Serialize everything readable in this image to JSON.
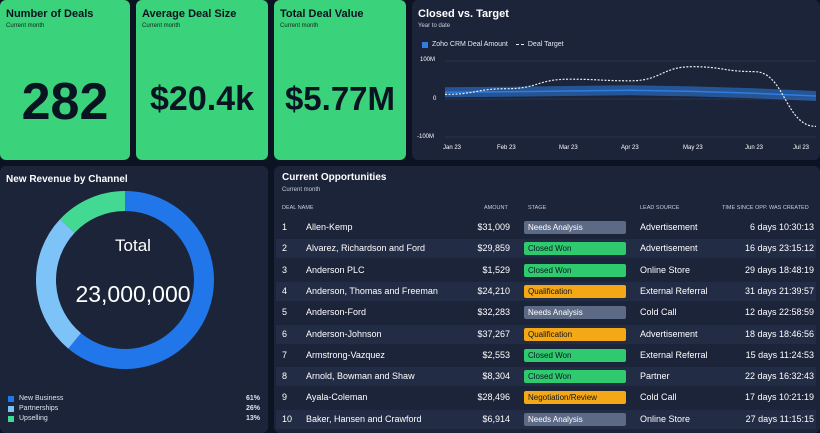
{
  "kpis": {
    "deals": {
      "title": "Number of Deals",
      "subtitle": "Current month",
      "value": "282"
    },
    "avg": {
      "title": "Average Deal Size",
      "subtitle": "Current month",
      "value": "$20.4k"
    },
    "total": {
      "title": "Total Deal Value",
      "subtitle": "Current month",
      "value": "$5.77M"
    }
  },
  "chart_data": [
    {
      "type": "line",
      "title": "Closed vs. Target",
      "subtitle": "Year to date",
      "x": [
        "Jan 23",
        "Feb 23",
        "Mar 23",
        "Apr 23",
        "May 23",
        "Jun 23",
        "Jul 23"
      ],
      "yticks": [
        "100M",
        "0",
        "-100M"
      ],
      "ylim": [
        -100,
        100
      ],
      "series": [
        {
          "name": "Zoho CRM Deal Amount",
          "color": "#2f7de1",
          "values": [
            18,
            19,
            21,
            23,
            20,
            15,
            8
          ]
        },
        {
          "name": "Deal Target",
          "color": "#e8ecf3",
          "values": [
            12,
            27,
            52,
            48,
            85,
            72,
            -72
          ]
        }
      ]
    },
    {
      "type": "pie",
      "title": "New Revenue by Channel",
      "center_label": "Total",
      "center_value": "23,000,000",
      "slices": [
        {
          "label": "New Business",
          "pct_label": "61%",
          "value": 61,
          "color": "#2177ea"
        },
        {
          "label": "Partnerships",
          "pct_label": "26%",
          "value": 26,
          "color": "#7ec3f7"
        },
        {
          "label": "Upselling",
          "pct_label": "13%",
          "value": 13,
          "color": "#43d992"
        }
      ]
    }
  ],
  "opps": {
    "title": "Current Opportunities",
    "subtitle": "Current month",
    "headers": [
      "DEAL NAME",
      "AMOUNT",
      "STAGE",
      "LEAD SOURCE",
      "TIME SINCE OPP. WAS CREATED"
    ],
    "rows": [
      {
        "n": "1",
        "name": "Allen-Kemp",
        "amount": "$31,009",
        "stage": "Needs Analysis",
        "source": "Advertisement",
        "time": "6 days 10:30:13"
      },
      {
        "n": "2",
        "name": "Alvarez, Richardson and Ford",
        "amount": "$29,859",
        "stage": "Closed Won",
        "source": "Advertisement",
        "time": "16 days 23:15:12"
      },
      {
        "n": "3",
        "name": "Anderson PLC",
        "amount": "$1,529",
        "stage": "Closed Won",
        "source": "Online Store",
        "time": "29 days 18:48:19"
      },
      {
        "n": "4",
        "name": "Anderson, Thomas and Freeman",
        "amount": "$24,210",
        "stage": "Qualification",
        "source": "External Referral",
        "time": "31 days 21:39:57"
      },
      {
        "n": "5",
        "name": "Anderson-Ford",
        "amount": "$32,283",
        "stage": "Needs Analysis",
        "source": "Cold Call",
        "time": "12 days 22:58:59"
      },
      {
        "n": "6",
        "name": "Anderson-Johnson",
        "amount": "$37,267",
        "stage": "Qualification",
        "source": "Advertisement",
        "time": "18 days 18:46:56"
      },
      {
        "n": "7",
        "name": "Armstrong-Vazquez",
        "amount": "$2,553",
        "stage": "Closed Won",
        "source": "External Referral",
        "time": "15 days 11:24:53"
      },
      {
        "n": "8",
        "name": "Arnold, Bowman and Shaw",
        "amount": "$8,304",
        "stage": "Closed Won",
        "source": "Partner",
        "time": "22 days 16:32:43"
      },
      {
        "n": "9",
        "name": "Ayala-Coleman",
        "amount": "$28,496",
        "stage": "Negotiation/Review",
        "source": "Cold Call",
        "time": "17 days 10:21:19"
      },
      {
        "n": "10",
        "name": "Baker, Hansen and Crawford",
        "amount": "$6,914",
        "stage": "Needs Analysis",
        "source": "Online Store",
        "time": "27 days 11:15:15"
      }
    ]
  },
  "stage_colors": {
    "Needs Analysis": "#5c6a86",
    "Closed Won": "#2fca6e",
    "Qualification": "#f5a816",
    "Negotiation/Review": "#f5a816"
  }
}
